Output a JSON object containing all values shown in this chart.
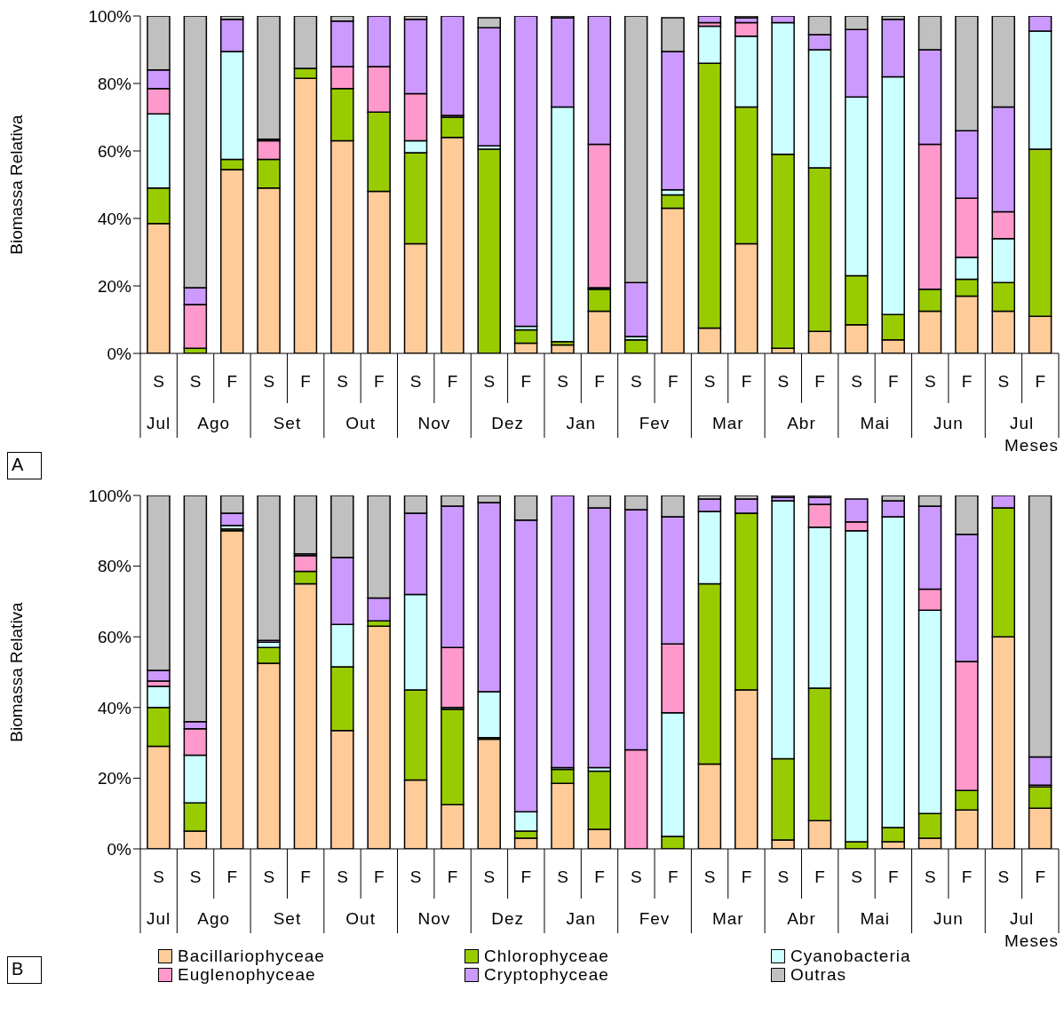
{
  "chart_data": [
    {
      "type": "bar",
      "title": "A",
      "xlabel": "Meses",
      "ylabel": "Biomassa Relativa",
      "stacked": true,
      "legend": false,
      "grid": false,
      "categories": [
        "S",
        "S",
        "F",
        "S",
        "F",
        "S",
        "F",
        "S",
        "F",
        "S",
        "F",
        "S",
        "F",
        "S",
        "F",
        "S",
        "F",
        "S",
        "F",
        "S",
        "F",
        "S",
        "F",
        "S",
        "F"
      ],
      "annotations": [
        "Jul",
        "Ago",
        "Set",
        "Out",
        "Nov",
        "Dez",
        "Jan",
        "Fev",
        "Mar",
        "Abr",
        "Mai",
        "Jun",
        "Jul"
      ],
      "ylim": [
        0,
        100
      ],
      "yticks": [
        {
          "value": 0,
          "label": "0%"
        },
        {
          "value": 20,
          "label": "20%"
        },
        {
          "value": 40,
          "label": "40%"
        },
        {
          "value": 60,
          "label": "60%"
        },
        {
          "value": 80,
          "label": "80%"
        },
        {
          "value": 100,
          "label": "100%"
        }
      ],
      "series": [
        {
          "color": "#ffcc99",
          "values": [
            38.5,
            0,
            54.5,
            49,
            81.5,
            63,
            48,
            32.5,
            64,
            null,
            3,
            2.5,
            12.5,
            0,
            43,
            7.5,
            32.5,
            1.5,
            6.5,
            8.5,
            4,
            12.5,
            17,
            12.5,
            11
          ]
        },
        {
          "color": "#99cc00",
          "values": [
            10.5,
            1.5,
            3,
            8.5,
            3,
            15.5,
            23.5,
            27,
            6,
            60.5,
            4,
            1,
            6.5,
            4,
            4,
            78.5,
            40.5,
            57.5,
            48.5,
            14.5,
            7.5,
            6.5,
            5,
            8.5,
            49.5
          ]
        },
        {
          "color": "#ccffff",
          "values": [
            22,
            0,
            32,
            0,
            0,
            0,
            0,
            3.5,
            0,
            1,
            1,
            69.5,
            0.5,
            1,
            1.5,
            11,
            21,
            39,
            35,
            53,
            70.5,
            0,
            6.5,
            13,
            35
          ]
        },
        {
          "color": "#ff99cc",
          "values": [
            7.5,
            13,
            0,
            5.5,
            0,
            6.5,
            13.5,
            14,
            0.5,
            0,
            0,
            0,
            42.5,
            0,
            null,
            1,
            4,
            0,
            0,
            0,
            0,
            43,
            17.5,
            8,
            0
          ]
        },
        {
          "color": "#cc99ff",
          "values": [
            5.5,
            5,
            9.5,
            0.5,
            0,
            13.5,
            15,
            22,
            29.5,
            35,
            92,
            26.5,
            38,
            16,
            41,
            2,
            1.5,
            2,
            4.5,
            20,
            17,
            28,
            20,
            31,
            4.5
          ]
        },
        {
          "color": "#c0c0c0",
          "values": [
            16,
            80.5,
            1,
            36.5,
            15.5,
            1.5,
            0,
            1,
            0,
            3,
            0,
            0.5,
            0,
            79,
            10,
            0,
            0.5,
            0,
            5.5,
            4,
            1,
            10,
            34,
            27,
            0
          ]
        }
      ]
    },
    {
      "type": "bar",
      "title": "B",
      "xlabel": "Meses",
      "ylabel": "Biomassa Relativa",
      "stacked": true,
      "legend": "bottom",
      "grid": false,
      "categories": [
        "S",
        "S",
        "F",
        "S",
        "F",
        "S",
        "F",
        "S",
        "F",
        "S",
        "F",
        "S",
        "F",
        "S",
        "F",
        "S",
        "F",
        "S",
        "F",
        "S",
        "F",
        "S",
        "F",
        "S",
        "F"
      ],
      "annotations": [
        "Jul",
        "Ago",
        "Set",
        "Out",
        "Nov",
        "Dez",
        "Jan",
        "Fev",
        "Mar",
        "Abr",
        "Mai",
        "Jun",
        "Jul"
      ],
      "ylim": [
        0,
        100
      ],
      "yticks": [
        {
          "value": 0,
          "label": "0%"
        },
        {
          "value": 20,
          "label": "20%"
        },
        {
          "value": 40,
          "label": "40%"
        },
        {
          "value": 60,
          "label": "60%"
        },
        {
          "value": 80,
          "label": "80%"
        },
        {
          "value": 100,
          "label": "100%"
        }
      ],
      "series": [
        {
          "name": "Bacillariophyceae",
          "color": "#ffcc99",
          "values": [
            29,
            5,
            90,
            52.5,
            75,
            33.5,
            63,
            19.5,
            12.5,
            31,
            3,
            18.5,
            5.5,
            0,
            0,
            24,
            45,
            2.5,
            8,
            null,
            2,
            3,
            11,
            60,
            11.5
          ]
        },
        {
          "name": "Chlorophyceae",
          "color": "#99cc00",
          "values": [
            11,
            8,
            0.5,
            4.5,
            3.5,
            18,
            1.5,
            25.5,
            27,
            0.5,
            2,
            4,
            16.5,
            0,
            3.5,
            51,
            50,
            23,
            37.5,
            2,
            4,
            7,
            5.5,
            36.5,
            6
          ]
        },
        {
          "name": "Cyanobacteria",
          "color": "#ccffff",
          "values": [
            6,
            13.5,
            1,
            1.5,
            0,
            12,
            0,
            27,
            0.5,
            13,
            5.5,
            0.5,
            1,
            0,
            35,
            20.5,
            0,
            73,
            45.5,
            88,
            88,
            57.5,
            0,
            0,
            0
          ]
        },
        {
          "name": "Euglenophyceae",
          "color": "#ff99cc",
          "values": [
            1.5,
            7.5,
            0,
            0,
            4.5,
            0,
            0,
            0,
            17,
            0,
            0,
            0,
            0,
            28,
            19.5,
            0,
            0,
            0,
            6.5,
            2.5,
            0,
            6,
            36.5,
            0,
            0.5
          ]
        },
        {
          "name": "Cryptophyceae",
          "color": "#cc99ff",
          "values": [
            3,
            2,
            3.5,
            0.5,
            0.5,
            19,
            6.5,
            23,
            40,
            53.5,
            82.5,
            77,
            73.5,
            68,
            36,
            3.5,
            4,
            1,
            2,
            6.5,
            4.5,
            23.5,
            36,
            3.5,
            8
          ]
        },
        {
          "name": "Outras",
          "color": "#c0c0c0",
          "values": [
            49.5,
            64,
            5,
            41,
            16.5,
            17.5,
            29,
            5,
            3,
            2,
            7,
            0,
            3.5,
            4,
            6,
            1,
            1,
            0.5,
            0.5,
            0,
            1.5,
            3,
            11,
            0,
            74
          ]
        }
      ]
    }
  ]
}
